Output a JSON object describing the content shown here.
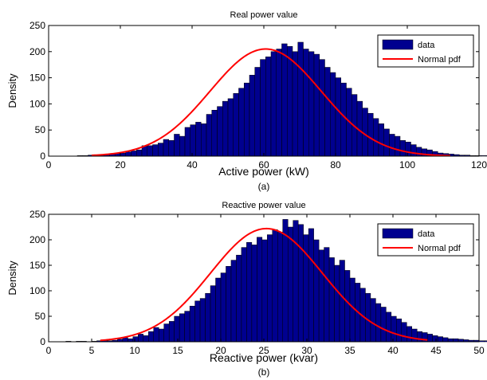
{
  "chart_data": [
    {
      "type": "bar",
      "subtype": "histogram-with-pdf",
      "title": "Real power value",
      "xlabel": "Active power (kW)",
      "ylabel": "Density",
      "caption": "(a)",
      "xlim": [
        0,
        120
      ],
      "ylim": [
        0,
        250
      ],
      "xticks": [
        "0",
        "20",
        "40",
        "60",
        "80",
        "100",
        "120"
      ],
      "yticks": [
        "0",
        "50",
        "100",
        "150",
        "200",
        "250"
      ],
      "legend": {
        "placement": "top-right",
        "entries": [
          "data",
          "Normal pdf"
        ]
      },
      "colors": {
        "bar": "#00008f",
        "bar_edge": "#000000",
        "pdf": "#ff0000"
      },
      "series": [
        {
          "name": "data",
          "kind": "histogram",
          "bin_start": 8,
          "bin_width": 1.5,
          "values": [
            1,
            1,
            2,
            1,
            3,
            3,
            4,
            5,
            6,
            8,
            10,
            12,
            20,
            20,
            22,
            25,
            32,
            30,
            42,
            38,
            55,
            60,
            65,
            62,
            80,
            88,
            95,
            105,
            110,
            120,
            130,
            140,
            155,
            170,
            185,
            190,
            200,
            205,
            215,
            210,
            200,
            218,
            205,
            200,
            195,
            185,
            170,
            160,
            150,
            140,
            130,
            118,
            105,
            92,
            82,
            72,
            62,
            52,
            42,
            38,
            30,
            27,
            22,
            17,
            14,
            12,
            9,
            6,
            5,
            4,
            3,
            2,
            2,
            1,
            1,
            1,
            1,
            0,
            0,
            0,
            1,
            0,
            0,
            0,
            0,
            0,
            0,
            0,
            0,
            1,
            0,
            0,
            0,
            1,
            1,
            0
          ]
        },
        {
          "name": "Normal pdf",
          "kind": "line",
          "mean": 60.5,
          "std": 15.5,
          "peak": 205,
          "x_range": [
            12,
            112
          ]
        }
      ]
    },
    {
      "type": "bar",
      "subtype": "histogram-with-pdf",
      "title": "Reactive power value",
      "xlabel": "Reactive power (kvar)",
      "ylabel": "Density",
      "caption": "(b)",
      "xlim": [
        0,
        50
      ],
      "ylim": [
        0,
        250
      ],
      "xticks": [
        "0",
        "5",
        "10",
        "15",
        "20",
        "25",
        "30",
        "35",
        "40",
        "45",
        "50"
      ],
      "yticks": [
        "0",
        "50",
        "100",
        "150",
        "200",
        "250"
      ],
      "legend": {
        "placement": "top-right",
        "entries": [
          "data",
          "Normal pdf"
        ]
      },
      "colors": {
        "bar": "#00008f",
        "bar_edge": "#000000",
        "pdf": "#ff0000"
      },
      "series": [
        {
          "name": "data",
          "kind": "histogram",
          "bin_start": 2,
          "bin_width": 0.6,
          "values": [
            1,
            0,
            1,
            1,
            0,
            1,
            2,
            3,
            2,
            3,
            5,
            8,
            6,
            10,
            15,
            12,
            20,
            28,
            25,
            35,
            40,
            50,
            55,
            60,
            70,
            80,
            85,
            95,
            110,
            125,
            135,
            148,
            160,
            170,
            185,
            195,
            190,
            205,
            200,
            210,
            220,
            215,
            240,
            225,
            238,
            230,
            210,
            222,
            200,
            180,
            185,
            165,
            150,
            160,
            140,
            125,
            115,
            105,
            95,
            85,
            75,
            68,
            58,
            50,
            45,
            38,
            30,
            25,
            20,
            18,
            15,
            12,
            10,
            8,
            6,
            6,
            5,
            4,
            3,
            3,
            2,
            2,
            1,
            1
          ]
        },
        {
          "name": "Normal pdf",
          "kind": "line",
          "mean": 25.3,
          "std": 6.5,
          "peak": 222,
          "x_range": [
            6,
            44
          ]
        }
      ]
    }
  ]
}
